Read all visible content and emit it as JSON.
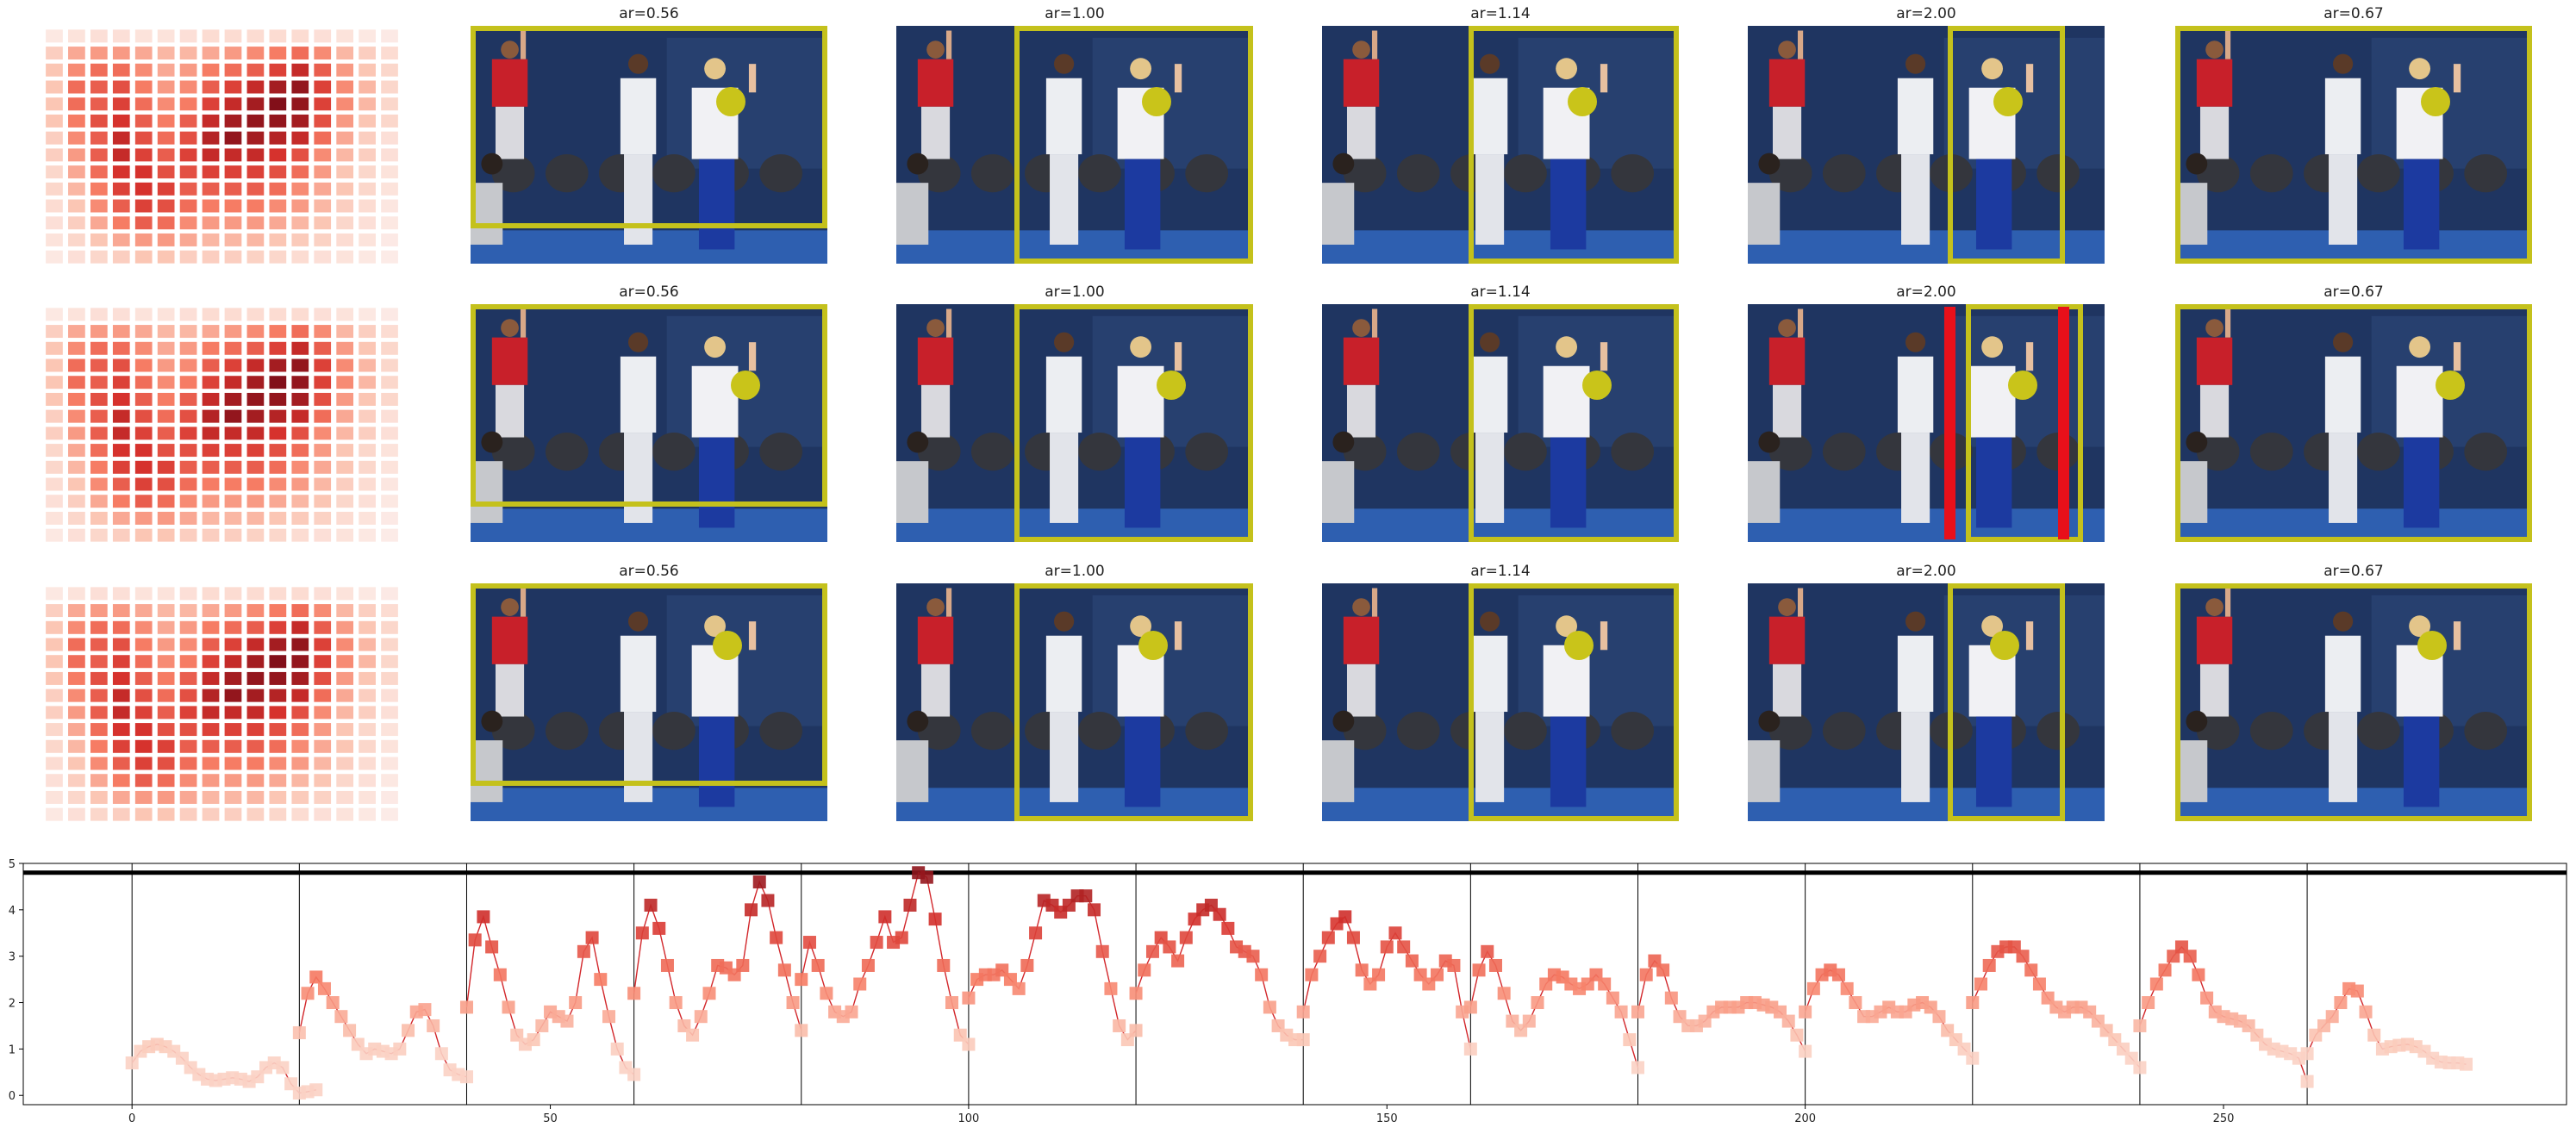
{
  "figure": {
    "rows": [
      {
        "panels": [
          {
            "title": "ar=0.56",
            "crop": [
              0.0,
              0.0,
              1.0,
              0.85
            ],
            "dot": [
              0.73,
              0.32
            ],
            "red_bars": []
          },
          {
            "title": "ar=1.00",
            "crop": [
              0.33,
              0.0,
              1.0,
              1.0
            ],
            "dot": [
              0.73,
              0.32
            ],
            "red_bars": []
          },
          {
            "title": "ar=1.14",
            "crop": [
              0.41,
              0.0,
              1.0,
              1.0
            ],
            "dot": [
              0.73,
              0.32
            ],
            "red_bars": []
          },
          {
            "title": "ar=2.00",
            "crop": [
              0.56,
              0.0,
              0.89,
              1.0
            ],
            "dot": [
              0.73,
              0.32
            ],
            "red_bars": []
          },
          {
            "title": "ar=0.67",
            "crop": [
              0.0,
              0.0,
              1.0,
              1.0
            ],
            "dot": [
              0.73,
              0.32
            ],
            "red_bars": []
          }
        ]
      },
      {
        "panels": [
          {
            "title": "ar=0.56",
            "crop": [
              0.0,
              0.0,
              1.0,
              0.85
            ],
            "dot": [
              0.77,
              0.34
            ],
            "red_bars": []
          },
          {
            "title": "ar=1.00",
            "crop": [
              0.33,
              0.0,
              1.0,
              1.0
            ],
            "dot": [
              0.77,
              0.34
            ],
            "red_bars": []
          },
          {
            "title": "ar=1.14",
            "crop": [
              0.41,
              0.0,
              1.0,
              1.0
            ],
            "dot": [
              0.77,
              0.34
            ],
            "red_bars": []
          },
          {
            "title": "ar=2.00",
            "crop": [
              0.61,
              0.0,
              0.94,
              1.0
            ],
            "dot": [
              0.77,
              0.34
            ],
            "red_bars": [
              0.565,
              0.885
            ]
          },
          {
            "title": "ar=0.67",
            "crop": [
              0.0,
              0.0,
              1.0,
              1.0
            ],
            "dot": [
              0.77,
              0.34
            ],
            "red_bars": []
          }
        ]
      },
      {
        "panels": [
          {
            "title": "ar=0.56",
            "crop": [
              0.0,
              0.0,
              1.0,
              0.85
            ],
            "dot": [
              0.72,
              0.26
            ],
            "red_bars": []
          },
          {
            "title": "ar=1.00",
            "crop": [
              0.33,
              0.0,
              1.0,
              1.0
            ],
            "dot": [
              0.72,
              0.26
            ],
            "red_bars": []
          },
          {
            "title": "ar=1.14",
            "crop": [
              0.41,
              0.0,
              1.0,
              1.0
            ],
            "dot": [
              0.72,
              0.26
            ],
            "red_bars": []
          },
          {
            "title": "ar=2.00",
            "crop": [
              0.56,
              0.0,
              0.89,
              1.0
            ],
            "dot": [
              0.72,
              0.26
            ],
            "red_bars": []
          },
          {
            "title": "ar=0.67",
            "crop": [
              0.0,
              0.0,
              1.0,
              1.0
            ],
            "dot": [
              0.72,
              0.26
            ],
            "red_bars": []
          }
        ]
      }
    ],
    "heatmap_grid": [
      [
        0.05,
        0.08,
        0.1,
        0.1,
        0.08,
        0.08,
        0.1,
        0.12,
        0.12,
        0.12,
        0.12,
        0.12,
        0.1,
        0.08,
        0.05,
        0.04
      ],
      [
        0.2,
        0.35,
        0.4,
        0.4,
        0.35,
        0.3,
        0.3,
        0.35,
        0.4,
        0.45,
        0.5,
        0.55,
        0.45,
        0.3,
        0.2,
        0.12
      ],
      [
        0.25,
        0.45,
        0.55,
        0.55,
        0.45,
        0.35,
        0.4,
        0.5,
        0.55,
        0.6,
        0.7,
        0.8,
        0.6,
        0.4,
        0.25,
        0.15
      ],
      [
        0.25,
        0.55,
        0.6,
        0.65,
        0.5,
        0.4,
        0.45,
        0.6,
        0.7,
        0.8,
        0.9,
        0.95,
        0.7,
        0.45,
        0.3,
        0.15
      ],
      [
        0.25,
        0.55,
        0.6,
        0.7,
        0.55,
        0.45,
        0.5,
        0.7,
        0.8,
        0.9,
        1.0,
        0.95,
        0.7,
        0.45,
        0.3,
        0.15
      ],
      [
        0.25,
        0.5,
        0.65,
        0.75,
        0.6,
        0.5,
        0.6,
        0.8,
        0.9,
        0.95,
        0.95,
        0.9,
        0.65,
        0.4,
        0.25,
        0.15
      ],
      [
        0.2,
        0.45,
        0.6,
        0.8,
        0.65,
        0.55,
        0.65,
        0.85,
        0.95,
        0.9,
        0.85,
        0.8,
        0.55,
        0.35,
        0.2,
        0.1
      ],
      [
        0.2,
        0.4,
        0.6,
        0.8,
        0.7,
        0.6,
        0.7,
        0.8,
        0.8,
        0.8,
        0.75,
        0.65,
        0.45,
        0.3,
        0.2,
        0.1
      ],
      [
        0.15,
        0.35,
        0.55,
        0.75,
        0.75,
        0.65,
        0.65,
        0.7,
        0.7,
        0.7,
        0.65,
        0.55,
        0.4,
        0.25,
        0.15,
        0.08
      ],
      [
        0.15,
        0.3,
        0.5,
        0.7,
        0.75,
        0.7,
        0.6,
        0.6,
        0.6,
        0.6,
        0.55,
        0.45,
        0.35,
        0.25,
        0.15,
        0.08
      ],
      [
        0.12,
        0.25,
        0.45,
        0.6,
        0.7,
        0.65,
        0.55,
        0.5,
        0.5,
        0.5,
        0.45,
        0.4,
        0.3,
        0.2,
        0.12,
        0.06
      ],
      [
        0.1,
        0.2,
        0.35,
        0.5,
        0.6,
        0.55,
        0.45,
        0.4,
        0.4,
        0.4,
        0.35,
        0.3,
        0.25,
        0.15,
        0.1,
        0.05
      ],
      [
        0.08,
        0.15,
        0.25,
        0.35,
        0.4,
        0.4,
        0.35,
        0.3,
        0.3,
        0.3,
        0.25,
        0.22,
        0.18,
        0.12,
        0.08,
        0.04
      ],
      [
        0.05,
        0.1,
        0.15,
        0.2,
        0.25,
        0.25,
        0.2,
        0.2,
        0.2,
        0.18,
        0.15,
        0.12,
        0.1,
        0.08,
        0.05,
        0.03
      ]
    ]
  },
  "chart_data": {
    "type": "line",
    "xlim": [
      -13,
      291
    ],
    "ylim": [
      -0.2,
      5.0
    ],
    "xticks": [
      0,
      50,
      100,
      150,
      200,
      250
    ],
    "yticks": [
      0,
      1,
      2,
      3,
      4,
      5
    ],
    "threshold_line": 4.8,
    "vlines": [
      0,
      20,
      40,
      60,
      80,
      100,
      120,
      140,
      160,
      180,
      200,
      220,
      240,
      260
    ],
    "segments": [
      [
        0.7,
        0.95,
        1.05,
        1.1,
        1.05,
        0.95,
        0.8,
        0.6,
        0.45,
        0.35,
        0.32,
        0.35,
        0.38,
        0.35,
        0.3,
        0.4,
        0.6,
        0.7,
        0.6,
        0.25,
        0.05,
        0.08,
        0.12
      ],
      [
        1.35,
        2.2,
        2.55,
        2.3,
        2.0,
        1.7,
        1.4,
        1.1,
        0.9,
        1.0,
        0.95,
        0.9,
        1.0,
        1.4,
        1.8,
        1.85,
        1.5,
        0.9,
        0.55,
        0.45,
        0.4
      ],
      [
        1.9,
        3.35,
        3.85,
        3.2,
        2.6,
        1.9,
        1.3,
        1.1,
        1.2,
        1.5,
        1.8,
        1.7,
        1.6,
        2.0,
        3.1,
        3.4,
        2.5,
        1.7,
        1.0,
        0.6,
        0.45
      ],
      [
        2.2,
        3.5,
        4.1,
        3.6,
        2.8,
        2.0,
        1.5,
        1.3,
        1.7,
        2.2,
        2.8,
        2.75,
        2.6,
        2.8,
        4.0,
        4.6,
        4.2,
        3.4,
        2.7,
        2.0,
        1.4
      ],
      [
        2.5,
        3.3,
        2.8,
        2.2,
        1.8,
        1.7,
        1.8,
        2.4,
        2.8,
        3.3,
        3.85,
        3.3,
        3.4,
        4.1,
        4.8,
        4.7,
        3.8,
        2.8,
        2.0,
        1.3,
        1.1
      ],
      [
        2.1,
        2.5,
        2.6,
        2.6,
        2.7,
        2.5,
        2.3,
        2.8,
        3.5,
        4.2,
        4.1,
        3.95,
        4.1,
        4.3,
        4.3,
        4.0,
        3.1,
        2.3,
        1.5,
        1.2,
        1.4
      ],
      [
        2.2,
        2.7,
        3.1,
        3.4,
        3.2,
        2.9,
        3.4,
        3.8,
        4.0,
        4.1,
        3.9,
        3.6,
        3.2,
        3.1,
        3.0,
        2.6,
        1.9,
        1.5,
        1.3,
        1.2,
        1.2
      ],
      [
        1.8,
        2.6,
        3.0,
        3.4,
        3.7,
        3.85,
        3.4,
        2.7,
        2.4,
        2.6,
        3.2,
        3.5,
        3.2,
        2.9,
        2.6,
        2.4,
        2.6,
        2.9,
        2.8,
        1.8,
        1.0
      ],
      [
        1.9,
        2.7,
        3.1,
        2.8,
        2.2,
        1.6,
        1.4,
        1.6,
        2.0,
        2.4,
        2.6,
        2.55,
        2.4,
        2.3,
        2.4,
        2.6,
        2.4,
        2.1,
        1.8,
        1.2,
        0.6
      ],
      [
        1.8,
        2.6,
        2.9,
        2.7,
        2.1,
        1.7,
        1.5,
        1.5,
        1.6,
        1.8,
        1.9,
        1.9,
        1.9,
        2.0,
        2.0,
        1.95,
        1.9,
        1.8,
        1.6,
        1.3,
        0.95
      ],
      [
        1.8,
        2.3,
        2.6,
        2.7,
        2.6,
        2.3,
        2.0,
        1.7,
        1.7,
        1.8,
        1.9,
        1.8,
        1.8,
        1.95,
        2.0,
        1.9,
        1.7,
        1.4,
        1.2,
        1.0,
        0.8
      ],
      [
        2.0,
        2.4,
        2.8,
        3.1,
        3.2,
        3.2,
        3.0,
        2.7,
        2.4,
        2.1,
        1.9,
        1.8,
        1.9,
        1.9,
        1.8,
        1.6,
        1.4,
        1.2,
        1.0,
        0.8,
        0.6
      ],
      [
        1.5,
        2.0,
        2.4,
        2.7,
        3.0,
        3.2,
        3.0,
        2.6,
        2.1,
        1.8,
        1.7,
        1.65,
        1.6,
        1.5,
        1.3,
        1.1,
        1.0,
        0.95,
        0.9,
        0.8,
        0.3
      ],
      [
        0.9,
        1.3,
        1.5,
        1.7,
        2.0,
        2.3,
        2.25,
        1.8,
        1.3,
        1.0,
        1.05,
        1.08,
        1.1,
        1.05,
        0.95,
        0.8,
        0.72,
        0.7,
        0.7,
        0.67
      ]
    ]
  }
}
